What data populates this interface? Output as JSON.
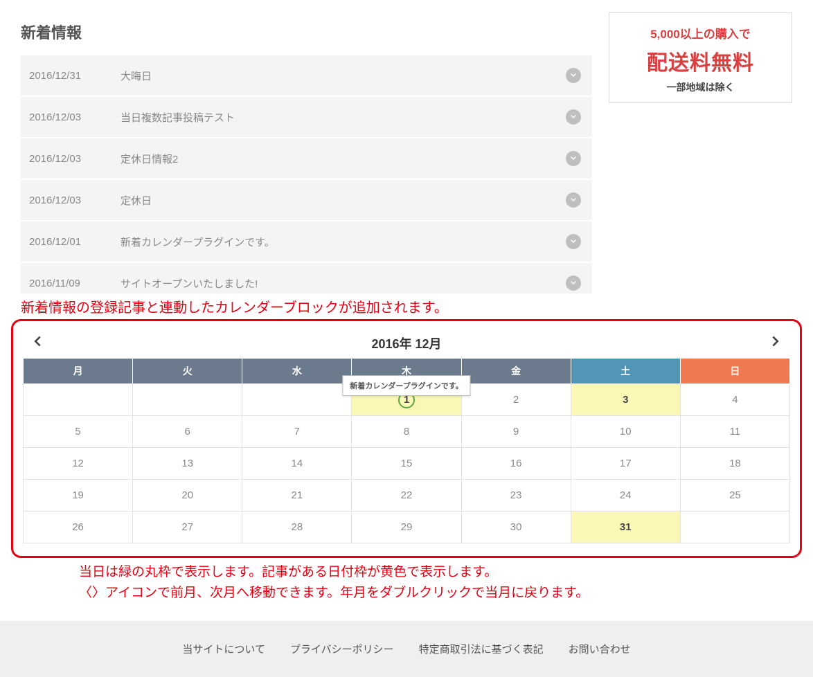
{
  "news": {
    "title": "新着情報",
    "items": [
      {
        "date": "2016/12/31",
        "title": "大晦日"
      },
      {
        "date": "2016/12/03",
        "title": "当日複数記事投稿テスト"
      },
      {
        "date": "2016/12/03",
        "title": "定休日情報2"
      },
      {
        "date": "2016/12/03",
        "title": "定休日"
      },
      {
        "date": "2016/12/01",
        "title": "新着カレンダープラグインです。"
      },
      {
        "date": "2016/11/09",
        "title": "サイトオープンいたしました!"
      }
    ]
  },
  "promo": {
    "line1": "5,000以上の購入で",
    "line2": "配送料無料",
    "line3": "一部地域は除く"
  },
  "annotation_top": "新着情報の登録記事と連動したカレンダーブロックが追加されます。",
  "calendar": {
    "title": "2016年 12月",
    "weekdays": [
      "月",
      "火",
      "水",
      "木",
      "金",
      "土",
      "日"
    ],
    "tooltip": "新着カレンダープラグインです。",
    "weeks": [
      [
        null,
        null,
        null,
        {
          "day": 1,
          "today": true,
          "has_post": true,
          "tooltip": true
        },
        {
          "day": 2
        },
        {
          "day": 3,
          "has_post": true
        },
        {
          "day": 4
        }
      ],
      [
        {
          "day": 5
        },
        {
          "day": 6
        },
        {
          "day": 7
        },
        {
          "day": 8
        },
        {
          "day": 9
        },
        {
          "day": 10
        },
        {
          "day": 11
        }
      ],
      [
        {
          "day": 12
        },
        {
          "day": 13
        },
        {
          "day": 14
        },
        {
          "day": 15
        },
        {
          "day": 16
        },
        {
          "day": 17
        },
        {
          "day": 18
        }
      ],
      [
        {
          "day": 19
        },
        {
          "day": 20
        },
        {
          "day": 21
        },
        {
          "day": 22
        },
        {
          "day": 23
        },
        {
          "day": 24
        },
        {
          "day": 25
        }
      ],
      [
        {
          "day": 26
        },
        {
          "day": 27
        },
        {
          "day": 28
        },
        {
          "day": 29
        },
        {
          "day": 30
        },
        {
          "day": 31,
          "has_post": true
        },
        null
      ]
    ],
    "header_colors": {
      "weekday": "#6b7a8c",
      "sat": "#5196b5",
      "sun": "#ef7a52"
    },
    "today_ring_color": "#5aa63f",
    "has_post_bg": "#fbf8b6",
    "annotation_color": "#e60012",
    "annotation_border_color": "#e60012"
  },
  "annotation_bottom": {
    "line1": "当日は緑の丸枠で表示します。記事がある日付枠が黄色で表示します。",
    "line2": "〈〉アイコンで前月、次月へ移動できます。年月をダブルクリックで当月に戻ります。"
  },
  "footer": {
    "links": [
      "当サイトについて",
      "プライバシーポリシー",
      "特定商取引法に基づく表記",
      "お問い合わせ"
    ]
  }
}
